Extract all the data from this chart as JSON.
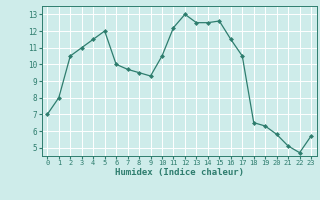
{
  "x": [
    0,
    1,
    2,
    3,
    4,
    5,
    6,
    7,
    8,
    9,
    10,
    11,
    12,
    13,
    14,
    15,
    16,
    17,
    18,
    19,
    20,
    21,
    22,
    23
  ],
  "y": [
    7,
    8,
    10.5,
    11,
    11.5,
    12,
    10,
    9.7,
    9.5,
    9.3,
    10.5,
    12.2,
    13,
    12.5,
    12.5,
    12.6,
    11.5,
    10.5,
    6.5,
    6.3,
    5.8,
    5.1,
    4.7,
    5.7
  ],
  "xlabel": "Humidex (Indice chaleur)",
  "xlim": [
    -0.5,
    23.5
  ],
  "ylim": [
    4.5,
    13.5
  ],
  "yticks": [
    5,
    6,
    7,
    8,
    9,
    10,
    11,
    12,
    13
  ],
  "xticks": [
    0,
    1,
    2,
    3,
    4,
    5,
    6,
    7,
    8,
    9,
    10,
    11,
    12,
    13,
    14,
    15,
    16,
    17,
    18,
    19,
    20,
    21,
    22,
    23
  ],
  "line_color": "#2e7d6e",
  "marker": "D",
  "marker_size": 2.0,
  "bg_color": "#ceecea",
  "grid_color": "#ffffff",
  "axis_color": "#2e7d6e",
  "label_color": "#2e7d6e",
  "tick_label_color": "#2e7d6e"
}
